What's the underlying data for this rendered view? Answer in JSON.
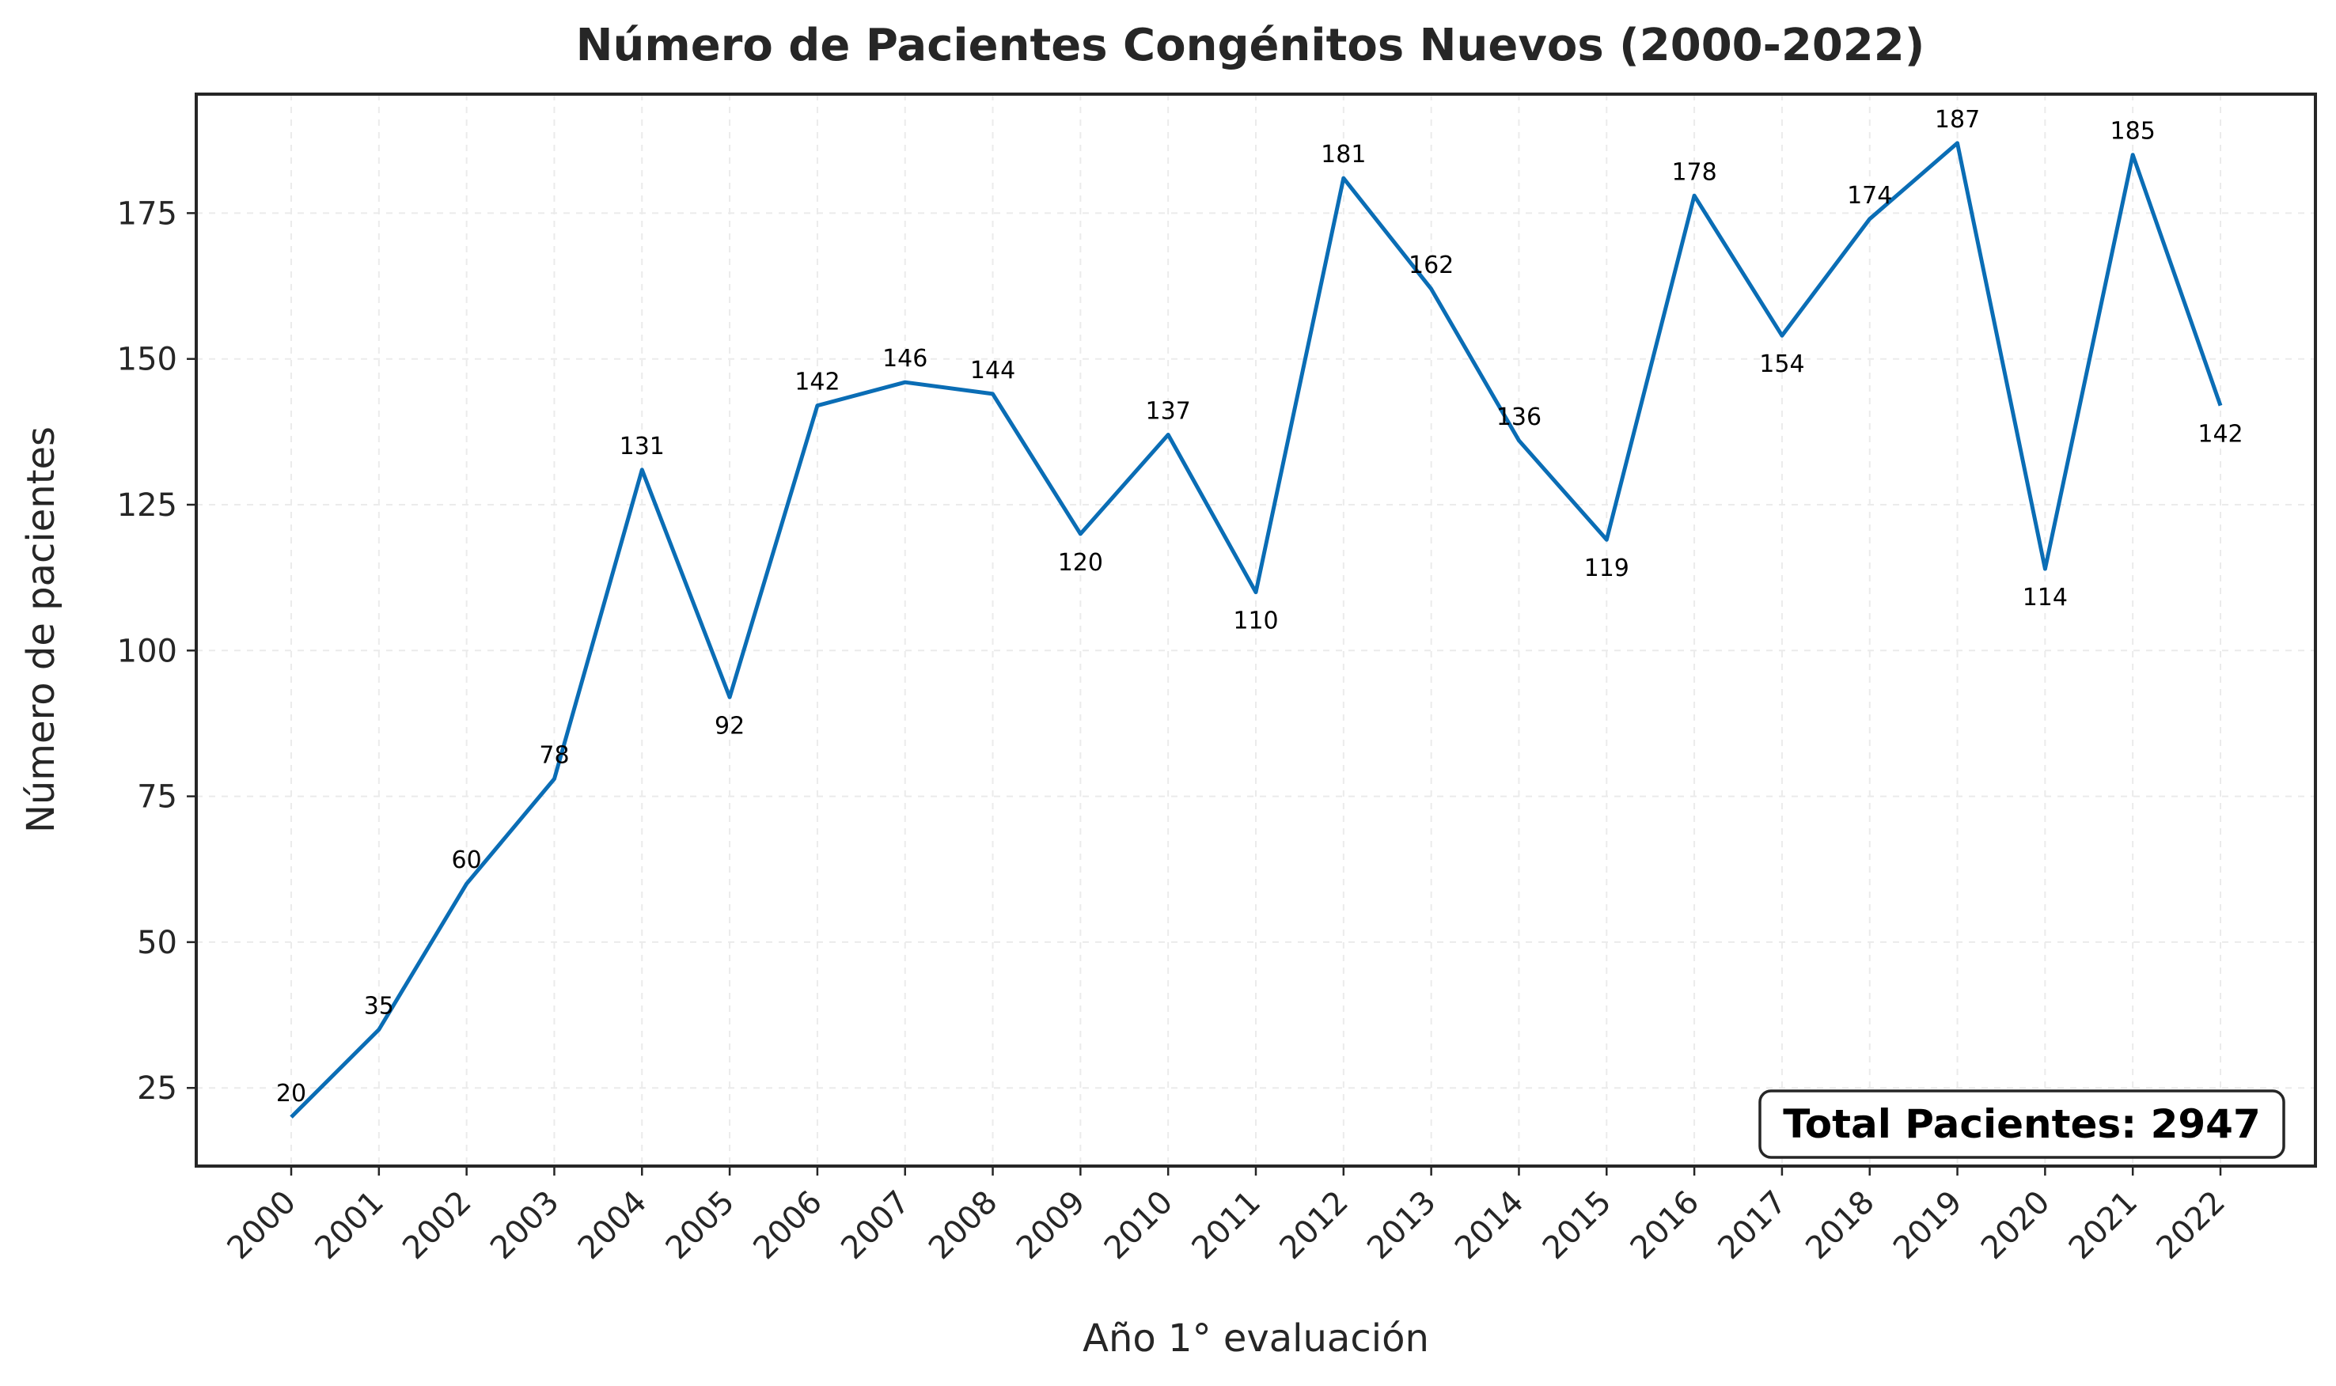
{
  "chart_data": {
    "type": "line",
    "title": "Número de Pacientes Congénitos Nuevos (2000-2022)",
    "xlabel": "Año 1° evaluación",
    "ylabel": "Número de pacientes",
    "categories": [
      "2000",
      "2001",
      "2002",
      "2003",
      "2004",
      "2005",
      "2006",
      "2007",
      "2008",
      "2009",
      "2010",
      "2011",
      "2012",
      "2013",
      "2014",
      "2015",
      "2016",
      "2017",
      "2018",
      "2019",
      "2020",
      "2021",
      "2022"
    ],
    "values": [
      20,
      35,
      60,
      78,
      131,
      92,
      142,
      146,
      144,
      120,
      137,
      110,
      181,
      162,
      136,
      119,
      178,
      154,
      174,
      187,
      114,
      185,
      142
    ],
    "yticks": [
      25,
      50,
      75,
      100,
      125,
      150,
      175
    ],
    "ylim": [
      11.6,
      195.4
    ],
    "grid": true,
    "line_color": "#0a6db5",
    "annotation": "Total Pacientes: 2947"
  }
}
